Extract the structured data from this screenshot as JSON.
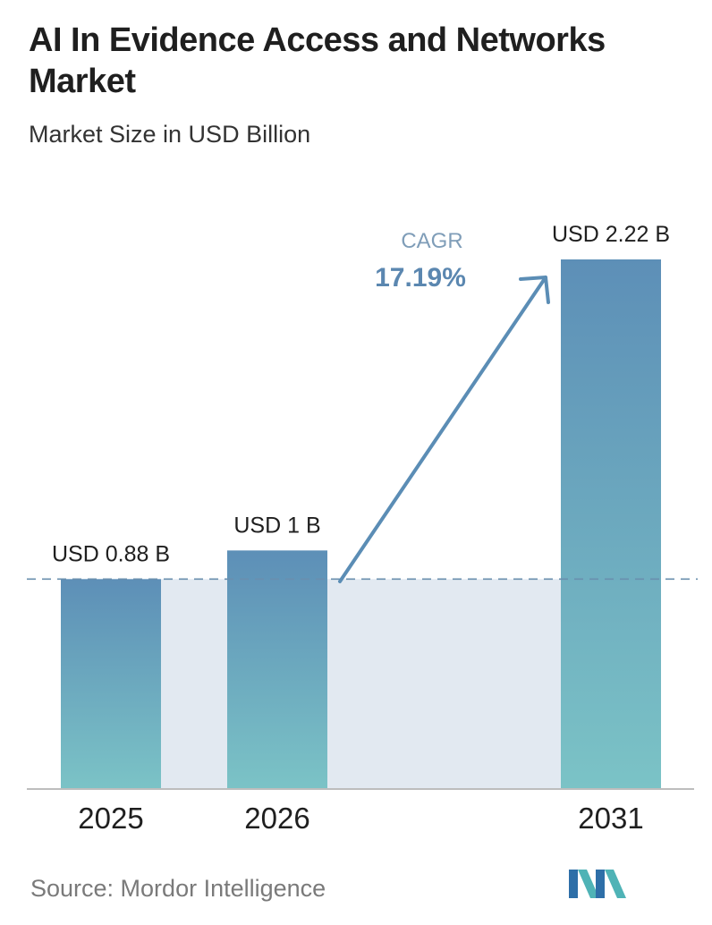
{
  "title": "AI In Evidence Access and Networks Market",
  "subtitle": "Market Size in USD Billion",
  "source": "Source: Mordor Intelligence",
  "colors": {
    "bar_top": "#5d8fb7",
    "bar_bottom": "#7bc3c6",
    "band": "#e2e9f1",
    "dashed_line": "#6a8fae",
    "arrow": "#5b8db5",
    "cagr_label": "#7f9db8",
    "cagr_value": "#5b87b0"
  },
  "chart_data": {
    "type": "bar",
    "title": "AI In Evidence Access and Networks Market",
    "subtitle": "Market Size in USD Billion",
    "categories": [
      "2025",
      "2026",
      "2031"
    ],
    "values": [
      0.88,
      1.0,
      2.22
    ],
    "data_labels": [
      "USD 0.88 B",
      "USD 1 B",
      "USD 2.22 B"
    ],
    "ylim": [
      0,
      2.22
    ],
    "grid": false,
    "reference_line": 0.88,
    "annotation": {
      "label": "CAGR",
      "value": "17.19%"
    }
  }
}
